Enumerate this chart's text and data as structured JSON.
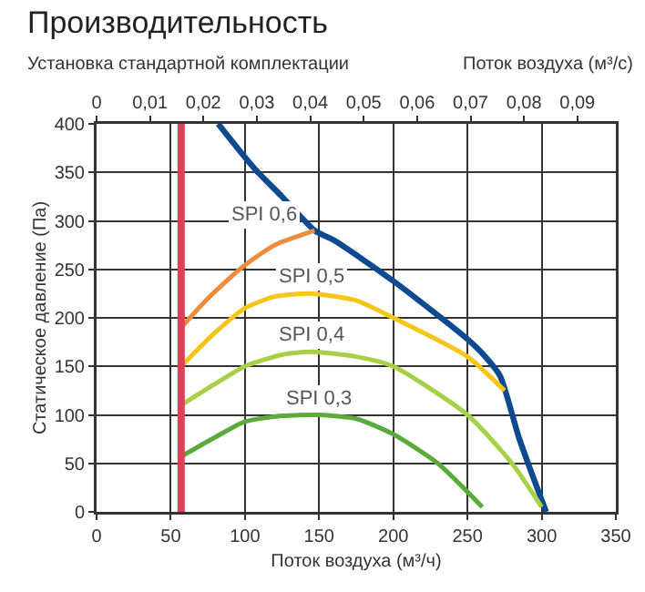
{
  "chart_data": {
    "type": "line",
    "title": "Производительность",
    "subtitle": "Установка стандартной комплектации",
    "xlabel": "Поток воздуха (м³/ч)",
    "x2label": "Поток воздуха (м³/с)",
    "ylabel": "Статическое давление (Па)",
    "xlim": [
      0,
      350
    ],
    "xticks": [
      0,
      50,
      100,
      150,
      200,
      250,
      300,
      350
    ],
    "ylim": [
      0,
      400
    ],
    "yticks": [
      0,
      50,
      100,
      150,
      200,
      250,
      300,
      350,
      400
    ],
    "x2lim": [
      0,
      0.0972
    ],
    "x2ticks": [
      0,
      {
        "value": 0.01,
        "label": "0,01"
      },
      {
        "value": 0.02,
        "label": "0,02"
      },
      {
        "value": 0.03,
        "label": "0,03"
      },
      {
        "value": 0.04,
        "label": "0,04"
      },
      {
        "value": 0.05,
        "label": "0,05"
      },
      {
        "value": 0.06,
        "label": "0,06"
      },
      {
        "value": 0.07,
        "label": "0,07"
      },
      {
        "value": 0.08,
        "label": "0,08"
      },
      {
        "value": 0.09,
        "label": "0,09"
      }
    ],
    "grid": true,
    "legend": false,
    "marker": "none",
    "line_style": "solid",
    "ref_lines": [
      {
        "axis": "x",
        "value": 57,
        "color": "#e23d5a"
      }
    ],
    "series": [
      {
        "color": "#0d4a8f",
        "x": [
          82,
          95,
          107,
          125,
          147,
          160,
          200,
          250,
          262,
          272,
          285,
          303
        ],
        "values": [
          400,
          375,
          353,
          325,
          290,
          280,
          238,
          178,
          160,
          140,
          75,
          0
        ]
      },
      {
        "name": "SPI 0,6",
        "color": "#ec8c3c",
        "x": [
          57,
          75,
          98,
          120,
          147
        ],
        "values": [
          190,
          220,
          252,
          275,
          290
        ]
      },
      {
        "name": "SPI 0,5",
        "color": "#f5c518",
        "x": [
          57,
          80,
          100,
          120,
          145,
          175,
          200,
          250,
          275
        ],
        "values": [
          150,
          185,
          210,
          222,
          225,
          218,
          200,
          160,
          125
        ]
      },
      {
        "name": "SPI 0,4",
        "color": "#a8cf45",
        "x": [
          57,
          80,
          100,
          125,
          145,
          175,
          200,
          250,
          280,
          300
        ],
        "values": [
          110,
          132,
          150,
          162,
          165,
          160,
          150,
          100,
          50,
          5
        ]
      },
      {
        "name": "SPI 0,3",
        "color": "#5aab3b",
        "x": [
          57,
          80,
          100,
          125,
          150,
          175,
          200,
          230,
          260
        ],
        "values": [
          57,
          77,
          93,
          99,
          100,
          96,
          80,
          50,
          5
        ]
      }
    ]
  }
}
